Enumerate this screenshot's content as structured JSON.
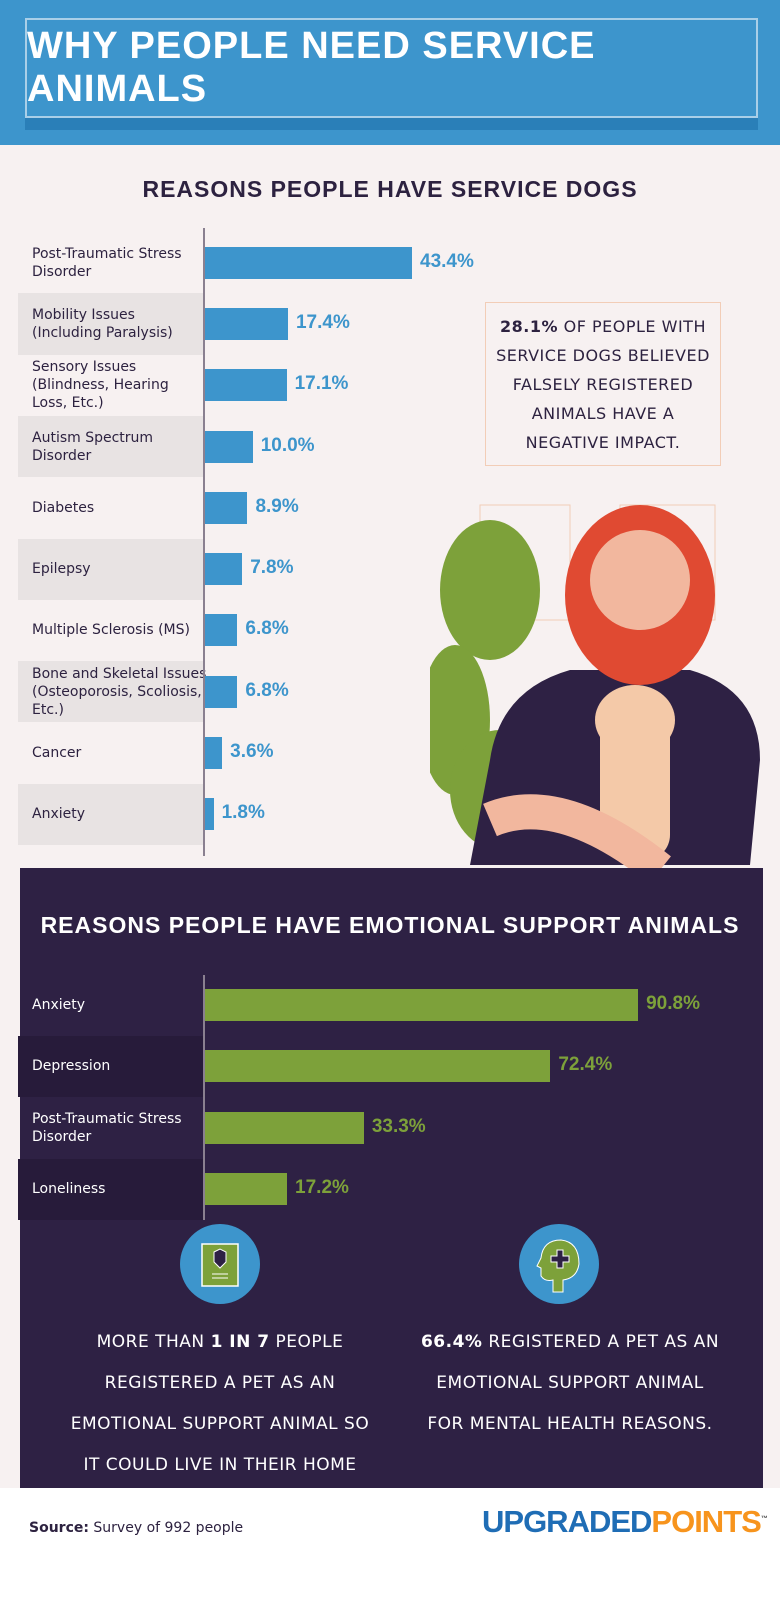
{
  "title": "WHY PEOPLE NEED SERVICE ANIMALS",
  "colors": {
    "header_blue": "#3d95cc",
    "bar_blue": "#3d95cc",
    "bar_green": "#7da13a",
    "dark_panel": "#2e2144",
    "logo_blue": "#1f6db5",
    "logo_orange": "#f7941d"
  },
  "callout": {
    "bold": "28.1%",
    "text": " OF PEOPLE WITH SERVICE DOGS BELIEVED FALSELY REGISTERED ANIMALS HAVE A NEGATIVE IMPACT."
  },
  "chart_data": [
    {
      "type": "bar",
      "orientation": "horizontal",
      "title": "REASONS PEOPLE HAVE SERVICE DOGS",
      "categories": [
        "Post-Traumatic Stress Disorder",
        "Mobility Issues (Including Paralysis)",
        "Sensory Issues (Blindness, Hearing Loss, Etc.)",
        "Autism Spectrum Disorder",
        "Diabetes",
        "Epilepsy",
        "Multiple Sclerosis (MS)",
        "Bone and Skeletal Issues (Osteoporosis, Scoliosis, Etc.)",
        "Cancer",
        "Anxiety"
      ],
      "values": [
        43.4,
        17.4,
        17.1,
        10.0,
        8.9,
        7.8,
        6.8,
        6.8,
        3.6,
        1.8
      ],
      "labels": [
        "43.4%",
        "17.4%",
        "17.1%",
        "10.0%",
        "8.9%",
        "7.8%",
        "6.8%",
        "6.8%",
        "3.6%",
        "1.8%"
      ],
      "unit": "%"
    },
    {
      "type": "bar",
      "orientation": "horizontal",
      "title": "REASONS PEOPLE HAVE EMOTIONAL SUPPORT ANIMALS",
      "categories": [
        "Anxiety",
        "Depression",
        "Post-Traumatic Stress Disorder",
        "Loneliness"
      ],
      "values": [
        90.8,
        72.4,
        33.3,
        17.2
      ],
      "labels": [
        "90.8%",
        "72.4%",
        "33.3%",
        "17.2%"
      ],
      "unit": "%"
    }
  ],
  "stats": [
    {
      "icon": "registration-card-icon",
      "pre": "MORE THAN ",
      "bold": "1 IN 7",
      "post": " PEOPLE REGISTERED A PET AS AN EMOTIONAL SUPPORT ANIMAL SO IT COULD LIVE IN THEIR HOME OR APARTMENT."
    },
    {
      "icon": "mental-health-head-icon",
      "pre": "",
      "bold": "66.4%",
      "post": " REGISTERED A PET AS AN EMOTIONAL SUPPORT ANIMAL FOR MENTAL HEALTH REASONS."
    }
  ],
  "footer": {
    "source_label": "Source:",
    "source_text": " Survey of 992 people",
    "logo_part1": "UPGRADED",
    "logo_part2": "POINTS",
    "logo_tm": "™"
  }
}
